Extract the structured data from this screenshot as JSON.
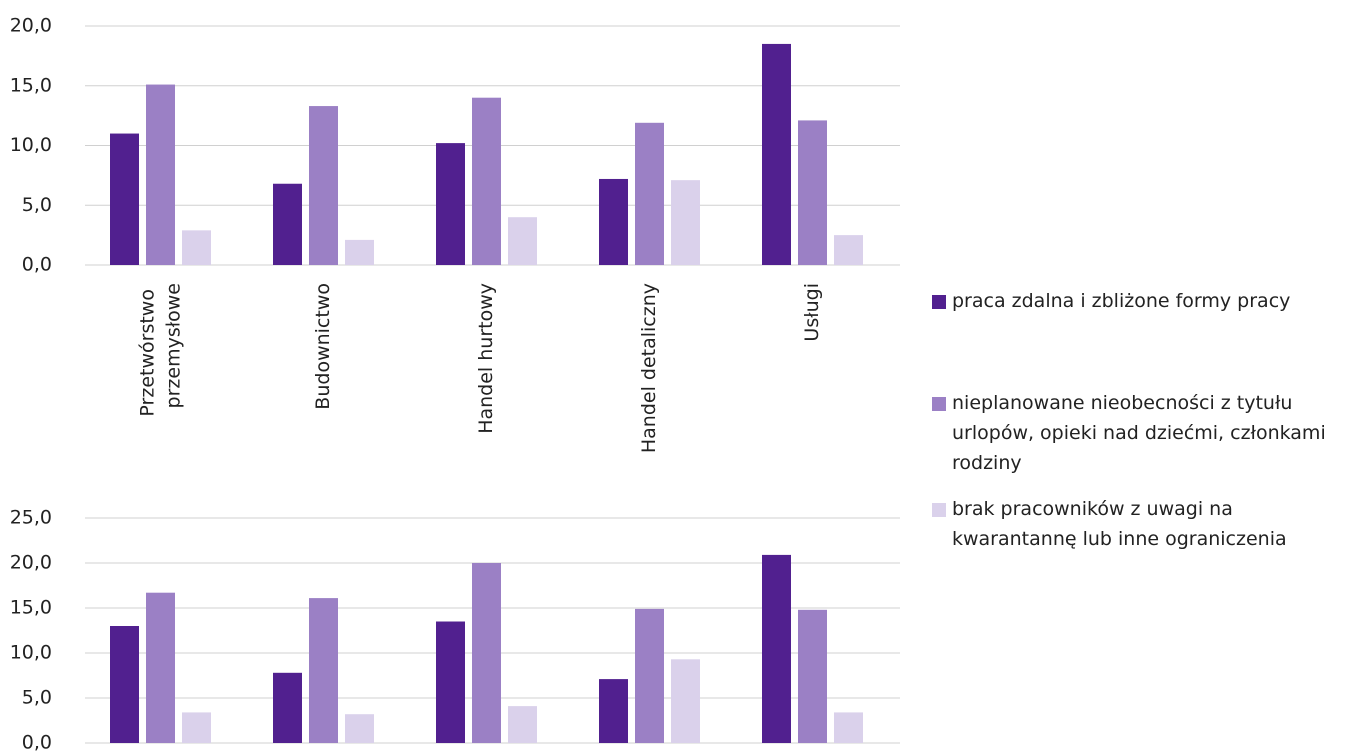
{
  "chart_data": [
    {
      "type": "bar",
      "categories": [
        "Przetwórstwo przemysłowe",
        "Budownictwo",
        "Handel hurtowy",
        "Handel detaliczny",
        "Usługi"
      ],
      "series": [
        {
          "name": "praca zdalna i zbliżone formy pracy",
          "color": "#51208f",
          "values": [
            11.0,
            6.8,
            10.2,
            7.2,
            18.5
          ]
        },
        {
          "name": "nieplanowane nieobecności z tytułu urlopów, opieki nad dziećmi, członkami rodziny",
          "color": "#9b80c5",
          "values": [
            15.1,
            13.3,
            14.0,
            11.9,
            12.1
          ]
        },
        {
          "name": "brak pracowników z uwagi na kwarantannę lub inne ograniczenia",
          "color": "#dad1eb",
          "values": [
            2.9,
            2.1,
            4.0,
            7.1,
            2.5
          ]
        }
      ],
      "ylim": [
        0,
        20
      ],
      "yticks": [
        {
          "value": 0,
          "label": "0,0"
        },
        {
          "value": 5,
          "label": "5,0"
        },
        {
          "value": 10,
          "label": "10,0"
        },
        {
          "value": 15,
          "label": "15,0"
        },
        {
          "value": 20,
          "label": "20,0"
        }
      ],
      "grid": true
    },
    {
      "type": "bar",
      "categories": [
        null,
        null,
        null,
        null,
        null
      ],
      "series": [
        {
          "color": "#51208f",
          "values": [
            13.0,
            7.8,
            13.5,
            7.1,
            20.9
          ]
        },
        {
          "color": "#9b80c5",
          "values": [
            16.7,
            16.1,
            20.0,
            14.9,
            14.8
          ]
        },
        {
          "color": "#dad1eb",
          "values": [
            3.4,
            3.2,
            4.1,
            9.3,
            3.4
          ]
        }
      ],
      "ylim": [
        0,
        25
      ],
      "yticks": [
        {
          "value": 0,
          "label": "0,0"
        },
        {
          "value": 5,
          "label": "5,0"
        },
        {
          "value": 10,
          "label": "10,0"
        },
        {
          "value": 15,
          "label": "15,0"
        },
        {
          "value": 20,
          "label": "20,0"
        },
        {
          "value": 25,
          "label": "25,0"
        }
      ],
      "grid": true
    }
  ]
}
